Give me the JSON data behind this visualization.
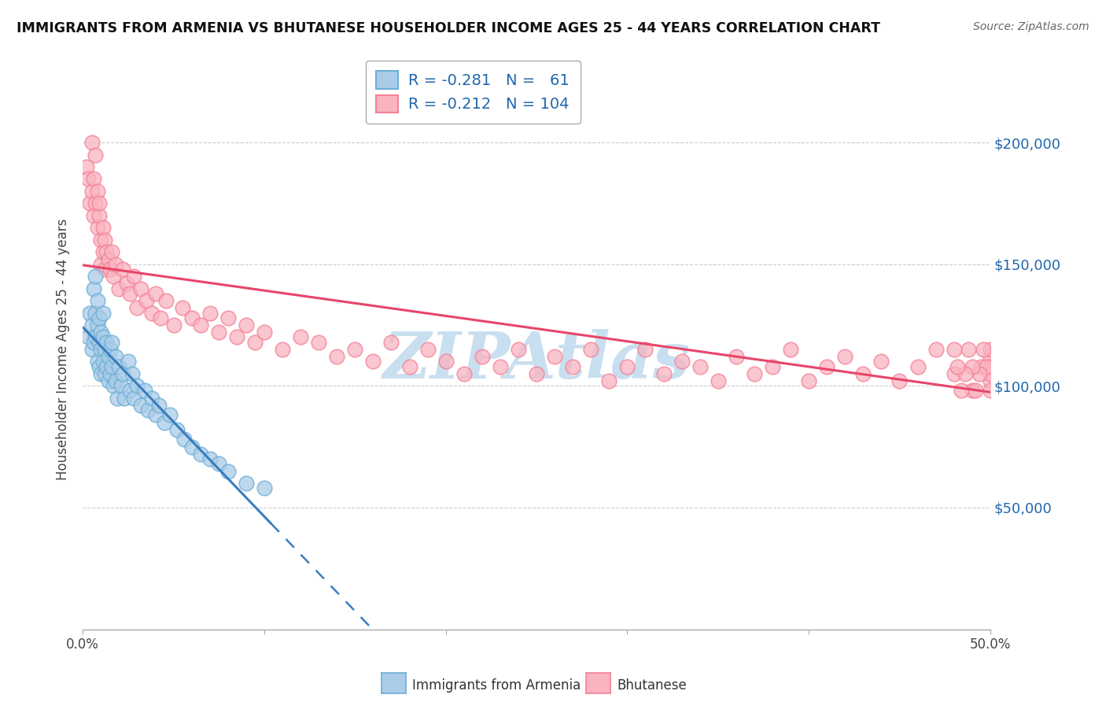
{
  "title": "IMMIGRANTS FROM ARMENIA VS BHUTANESE HOUSEHOLDER INCOME AGES 25 - 44 YEARS CORRELATION CHART",
  "source": "Source: ZipAtlas.com",
  "ylabel": "Householder Income Ages 25 - 44 years",
  "xlim": [
    0.0,
    0.5
  ],
  "ylim": [
    0,
    230000
  ],
  "yticks": [
    0,
    50000,
    100000,
    150000,
    200000
  ],
  "ytick_labels": [
    "",
    "$50,000",
    "$100,000",
    "$150,000",
    "$200,000"
  ],
  "xticks": [
    0.0,
    0.1,
    0.2,
    0.3,
    0.4,
    0.5
  ],
  "xtick_labels": [
    "0.0%",
    "",
    "",
    "",
    "",
    "50.0%"
  ],
  "armenia_color": "#aacce8",
  "bhutanese_color": "#f9b4c0",
  "armenia_edge_color": "#6baed6",
  "bhutanese_edge_color": "#f48096",
  "armenia_line_color": "#3a7dbf",
  "bhutanese_line_color": "#e8456a",
  "title_color": "#111111",
  "source_color": "#666666",
  "watermark_text": "ZIPAtlas",
  "watermark_color": "#c8dff0",
  "arm_R": -0.281,
  "arm_N": 61,
  "bhu_R": -0.212,
  "bhu_N": 104,
  "armenia_x": [
    0.003,
    0.004,
    0.005,
    0.005,
    0.006,
    0.006,
    0.007,
    0.007,
    0.007,
    0.008,
    0.008,
    0.008,
    0.009,
    0.009,
    0.009,
    0.01,
    0.01,
    0.01,
    0.011,
    0.011,
    0.011,
    0.012,
    0.012,
    0.013,
    0.013,
    0.014,
    0.014,
    0.015,
    0.015,
    0.016,
    0.016,
    0.017,
    0.018,
    0.018,
    0.019,
    0.02,
    0.021,
    0.022,
    0.023,
    0.025,
    0.026,
    0.027,
    0.028,
    0.03,
    0.032,
    0.034,
    0.036,
    0.038,
    0.04,
    0.042,
    0.045,
    0.048,
    0.052,
    0.056,
    0.06,
    0.065,
    0.07,
    0.075,
    0.08,
    0.09,
    0.1
  ],
  "armenia_y": [
    120000,
    130000,
    125000,
    115000,
    118000,
    140000,
    145000,
    130000,
    120000,
    125000,
    135000,
    110000,
    128000,
    118000,
    108000,
    122000,
    115000,
    105000,
    130000,
    120000,
    110000,
    115000,
    105000,
    118000,
    108000,
    112000,
    102000,
    115000,
    105000,
    118000,
    108000,
    100000,
    112000,
    102000,
    95000,
    108000,
    100000,
    105000,
    95000,
    110000,
    98000,
    105000,
    95000,
    100000,
    92000,
    98000,
    90000,
    95000,
    88000,
    92000,
    85000,
    88000,
    82000,
    78000,
    75000,
    72000,
    70000,
    68000,
    65000,
    60000,
    58000
  ],
  "bhutanese_x": [
    0.002,
    0.003,
    0.004,
    0.005,
    0.005,
    0.006,
    0.006,
    0.007,
    0.007,
    0.008,
    0.008,
    0.009,
    0.009,
    0.01,
    0.01,
    0.011,
    0.011,
    0.012,
    0.012,
    0.013,
    0.014,
    0.015,
    0.016,
    0.017,
    0.018,
    0.02,
    0.022,
    0.024,
    0.026,
    0.028,
    0.03,
    0.032,
    0.035,
    0.038,
    0.04,
    0.043,
    0.046,
    0.05,
    0.055,
    0.06,
    0.065,
    0.07,
    0.075,
    0.08,
    0.085,
    0.09,
    0.095,
    0.1,
    0.11,
    0.12,
    0.13,
    0.14,
    0.15,
    0.16,
    0.17,
    0.18,
    0.19,
    0.2,
    0.21,
    0.22,
    0.23,
    0.24,
    0.25,
    0.26,
    0.27,
    0.28,
    0.29,
    0.3,
    0.31,
    0.32,
    0.33,
    0.34,
    0.35,
    0.36,
    0.37,
    0.38,
    0.39,
    0.4,
    0.41,
    0.42,
    0.43,
    0.44,
    0.45,
    0.46,
    0.47,
    0.48,
    0.49,
    0.495,
    0.5,
    0.5,
    0.5,
    0.5,
    0.5,
    0.5,
    0.498,
    0.496,
    0.494,
    0.492,
    0.49,
    0.488,
    0.486,
    0.484,
    0.482,
    0.48
  ],
  "bhutanese_y": [
    190000,
    185000,
    175000,
    180000,
    200000,
    185000,
    170000,
    175000,
    195000,
    180000,
    165000,
    170000,
    175000,
    160000,
    150000,
    165000,
    155000,
    160000,
    148000,
    155000,
    152000,
    148000,
    155000,
    145000,
    150000,
    140000,
    148000,
    142000,
    138000,
    145000,
    132000,
    140000,
    135000,
    130000,
    138000,
    128000,
    135000,
    125000,
    132000,
    128000,
    125000,
    130000,
    122000,
    128000,
    120000,
    125000,
    118000,
    122000,
    115000,
    120000,
    118000,
    112000,
    115000,
    110000,
    118000,
    108000,
    115000,
    110000,
    105000,
    112000,
    108000,
    115000,
    105000,
    112000,
    108000,
    115000,
    102000,
    108000,
    115000,
    105000,
    110000,
    108000,
    102000,
    112000,
    105000,
    108000,
    115000,
    102000,
    108000,
    112000,
    105000,
    110000,
    102000,
    108000,
    115000,
    105000,
    98000,
    108000,
    112000,
    102000,
    108000,
    115000,
    105000,
    98000,
    108000,
    115000,
    105000,
    98000,
    108000,
    115000,
    105000,
    98000,
    108000,
    115000
  ]
}
